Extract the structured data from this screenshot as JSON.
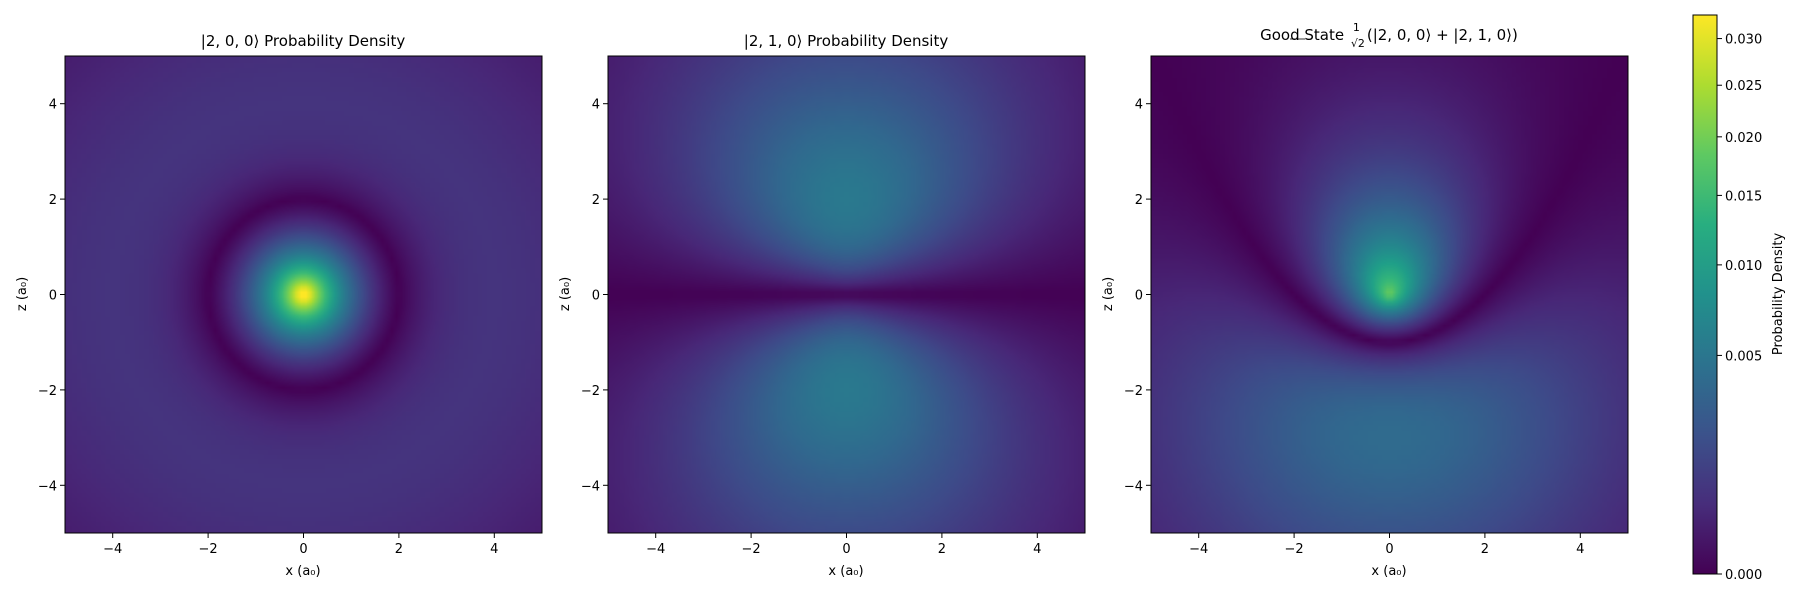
{
  "chart_data": [
    {
      "type": "heatmap",
      "title_parts": {
        "ket": "|2, 0, 0⟩",
        "suffix": " Probability Density"
      },
      "xlabel": "x (a₀)",
      "ylabel": "z (a₀)",
      "xlim": [
        -5,
        5
      ],
      "ylim": [
        -5,
        5
      ],
      "xticks": [
        -4,
        -2,
        0,
        2,
        4
      ],
      "yticks": [
        -4,
        -2,
        0,
        2,
        4
      ],
      "xtick_labels": [
        "−4",
        "−2",
        "0",
        "2",
        "4"
      ],
      "ytick_labels": [
        "−4",
        "−2",
        "0",
        "2",
        "4"
      ],
      "state": "2,0,0",
      "grid": false
    },
    {
      "type": "heatmap",
      "title_parts": {
        "ket": "|2, 1, 0⟩",
        "suffix": " Probability Density"
      },
      "xlabel": "x (a₀)",
      "ylabel": "z (a₀)",
      "xlim": [
        -5,
        5
      ],
      "ylim": [
        -5,
        5
      ],
      "xticks": [
        -4,
        -2,
        0,
        2,
        4
      ],
      "yticks": [
        -4,
        -2,
        0,
        2,
        4
      ],
      "xtick_labels": [
        "−4",
        "−2",
        "0",
        "2",
        "4"
      ],
      "ytick_labels": [
        "−4",
        "−2",
        "0",
        "2",
        "4"
      ],
      "state": "2,1,0",
      "grid": false
    },
    {
      "type": "heatmap",
      "title_parts": {
        "prefix": "Good State ",
        "frac_num": "1",
        "frac_den": "√2",
        "expr": "(|2, 0, 0⟩ + |2, 1, 0⟩)"
      },
      "xlabel": "x (a₀)",
      "ylabel": "z (a₀)",
      "xlim": [
        -5,
        5
      ],
      "ylim": [
        -5,
        5
      ],
      "xticks": [
        -4,
        -2,
        0,
        2,
        4
      ],
      "yticks": [
        -4,
        -2,
        0,
        2,
        4
      ],
      "xtick_labels": [
        "−4",
        "−2",
        "0",
        "2",
        "4"
      ],
      "ytick_labels": [
        "−4",
        "−2",
        "0",
        "2",
        "4"
      ],
      "state": "good",
      "grid": false
    }
  ],
  "colorbar": {
    "label": "Probability Density",
    "ticks": [
      0.0,
      0.005,
      0.01,
      0.015,
      0.02,
      0.025,
      0.03
    ],
    "tick_labels": [
      "0.000",
      "0.005",
      "0.010",
      "0.015",
      "0.020",
      "0.025",
      "0.030"
    ],
    "vmax": 0.0327,
    "scale": "power-0.5",
    "colormap": "viridis"
  }
}
